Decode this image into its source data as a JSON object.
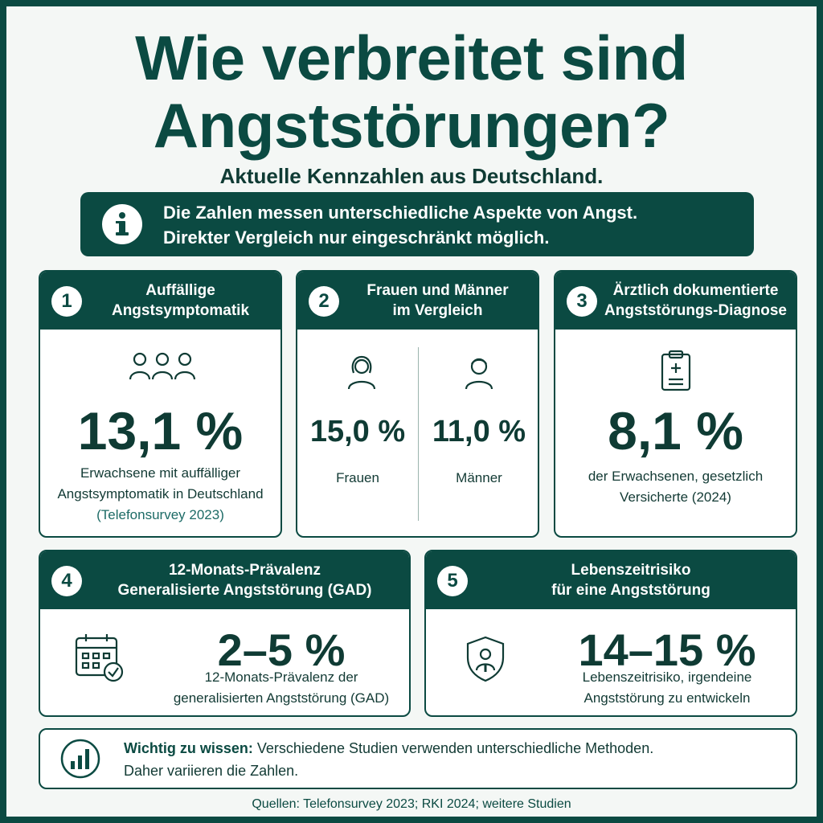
{
  "header": {
    "title_line1": "Wie verbreitet sind",
    "title_line2": "Angststörungen?",
    "subtitle": "Aktuelle Kennzahlen aus Deutschland."
  },
  "info": {
    "icon": "info-icon",
    "line1": "Die Zahlen messen unterschiedliche Aspekte von Angst.",
    "line2": "Direkter Vergleich nur eingeschränkt möglich."
  },
  "cards": {
    "c1": {
      "number": "1",
      "title_line1": "Auffällige",
      "title_line2": "Angstsymptomatik",
      "icon": "people-group-icon",
      "value": "13,1 %",
      "desc_line1": "Erwachsene mit auffälliger",
      "desc_line2": "Angstsymptomatik in Deutschland",
      "source": "(Telefonsurvey 2023)"
    },
    "c2": {
      "number": "2",
      "title_line1": "Frauen und Männer",
      "title_line2": "im Vergleich",
      "women_icon": "woman-icon",
      "women_value": "15,0 %",
      "women_label": "Frauen",
      "men_icon": "man-icon",
      "men_value": "11,0 %",
      "men_label": "Männer"
    },
    "c3": {
      "number": "3",
      "title_line1": "Ärztlich dokumentierte",
      "title_line2": "Angststörungs-Diagnose",
      "icon": "medical-clipboard-icon",
      "value": "8,1 %",
      "desc_line1": "der Erwachsenen, gesetzlich",
      "desc_line2": "Versicherte (2024)"
    },
    "c4": {
      "number": "4",
      "title_line1": "12-Monats-Prävalenz",
      "title_line2": "Generalisierte Angststörung (GAD)",
      "icon": "calendar-check-icon",
      "value": "2–5 %",
      "desc_line1": "12-Monats-Prävalenz der",
      "desc_line2": "generalisierten Angststörung (GAD)"
    },
    "c5": {
      "number": "5",
      "title_line1": "Lebenszeitrisiko",
      "title_line2": "für eine Angststörung",
      "icon": "shield-person-icon",
      "value": "14–15 %",
      "desc_line1": "Lebenszeitrisiko, irgendeine",
      "desc_line2": "Angststörung zu entwickeln"
    }
  },
  "note": {
    "icon": "bar-chart-icon",
    "label": "Wichtig zu wissen:",
    "text_line1": "Verschiedene Studien verwenden unterschiedliche Methoden.",
    "text_line2": "Daher variieren die Zahlen."
  },
  "sources": "Quellen: Telefonsurvey 2023; RKI 2024; weitere Studien",
  "colors": {
    "primary": "#0b4a42",
    "background": "#f4f7f5",
    "card": "#ffffff",
    "source_accent": "#1d6b66"
  }
}
